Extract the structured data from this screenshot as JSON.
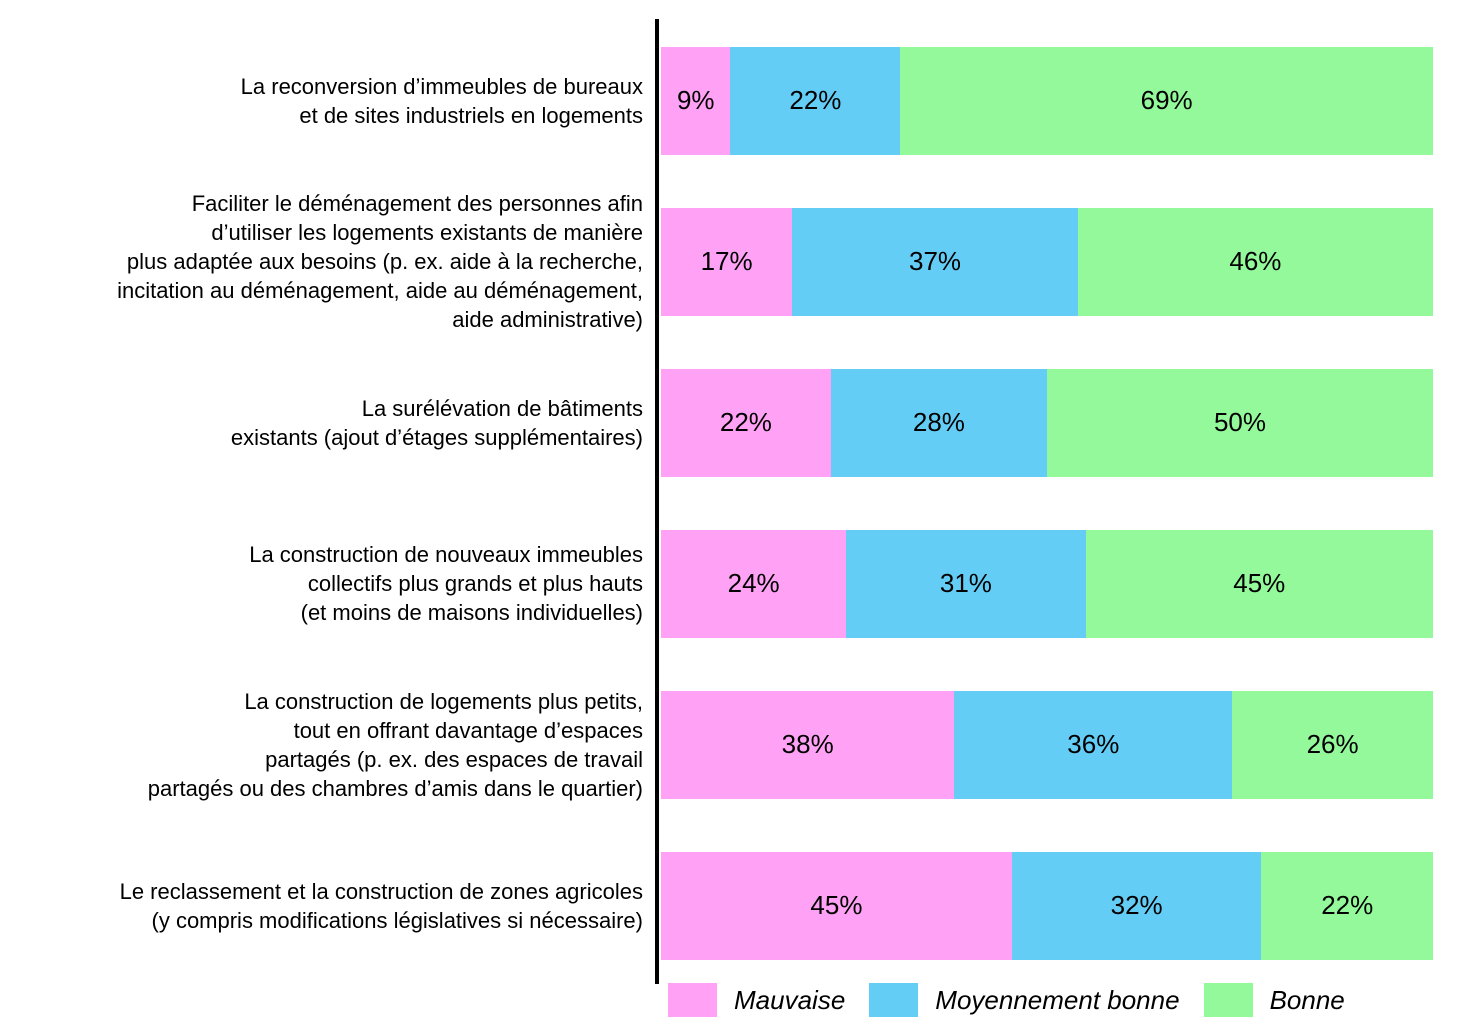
{
  "chart_data": {
    "type": "bar",
    "orientation": "horizontal",
    "stacked": true,
    "stacked_to_100_percent": true,
    "value_suffix": "%",
    "axis_color": "#000000",
    "grid": false,
    "legend_position": "bottom",
    "categories": [
      "La reconversion d’immeubles de bureaux et de sites industriels en logements",
      "Faciliter le déménagement des personnes afin d’utiliser les logements existants de manière plus adaptée aux besoins (p. ex. aide à la recherche, incitation au déménagement, aide au déménagement, aide administrative)",
      "La surélévation de bâtiments existants (ajout d’étages supplémentaires)",
      "La construction de nouveaux immeubles collectifs plus grands et plus hauts (et moins de maisons individuelles)",
      "La construction de logements plus petits, tout en offrant davantage d’espaces partagés (p. ex. des espaces de travail partagés ou des chambres d’amis dans le quartier)",
      "Le reclassement et la construction de zones agricoles (y compris modifications législatives si nécessaire)"
    ],
    "category_label_lines": [
      [
        "La reconversion d’immeubles de bureaux",
        "et de sites industriels en logements"
      ],
      [
        "Faciliter le déménagement des personnes afin",
        "d’utiliser les logements existants de manière",
        "plus adaptée aux besoins (p. ex. aide à la recherche,",
        "incitation au déménagement, aide au déménagement,",
        "aide administrative)"
      ],
      [
        "La surélévation de bâtiments",
        "existants (ajout d’étages supplémentaires)"
      ],
      [
        "La construction de nouveaux immeubles",
        "collectifs plus grands et plus hauts",
        "(et moins de maisons individuelles)"
      ],
      [
        "La construction de logements plus petits,",
        "tout en offrant davantage d’espaces",
        "partagés (p. ex. des espaces de travail",
        "partagés ou des chambres d’amis dans le quartier)"
      ],
      [
        "Le reclassement et la construction de zones agricoles",
        "(y compris modifications législatives si nécessaire)"
      ]
    ],
    "series": [
      {
        "name": "Mauvaise",
        "color": "#FFA2F5",
        "values": [
          9,
          17,
          22,
          24,
          38,
          45
        ]
      },
      {
        "name": "Moyennement bonne",
        "color": "#64CDF5",
        "values": [
          22,
          37,
          28,
          31,
          36,
          32
        ]
      },
      {
        "name": "Bonne",
        "color": "#93F99A",
        "values": [
          69,
          46,
          50,
          45,
          26,
          22
        ]
      }
    ]
  }
}
